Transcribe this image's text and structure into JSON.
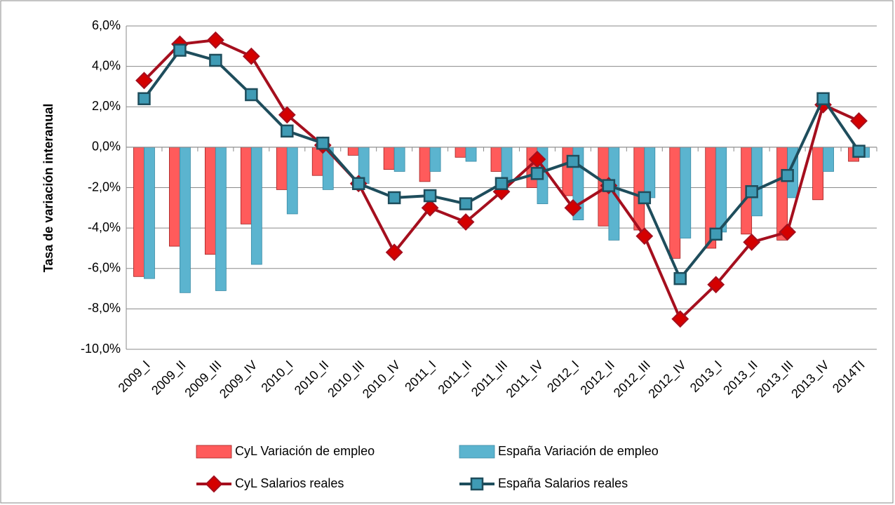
{
  "chart_data": {
    "type": "bar",
    "y_label": "Tasa de variación interanual",
    "categories": [
      "2009_I",
      "2009_II",
      "2009_III",
      "2009_IV",
      "2010_I",
      "2010_II",
      "2010_III",
      "2010_IV",
      "2011_I",
      "2011_II",
      "2011_III",
      "2011_IV",
      "2012_I",
      "2012_II",
      "2012_III",
      "2012_IV",
      "2013_I",
      "2013_II",
      "2013_III",
      "2013_IV",
      "2014TI"
    ],
    "series": [
      {
        "name": "CyL Variación de empleo",
        "type": "bar",
        "color": "#ff5b5b",
        "values": [
          -6.4,
          -4.9,
          -5.3,
          -3.8,
          -2.1,
          -1.4,
          -0.4,
          -1.1,
          -1.7,
          -0.5,
          -1.2,
          -2.0,
          -2.4,
          -3.9,
          -4.1,
          -5.5,
          -5.0,
          -4.3,
          -4.6,
          -2.6,
          -0.7
        ]
      },
      {
        "name": "España Variación de empleo",
        "type": "bar",
        "color": "#5bb4cf",
        "values": [
          -6.5,
          -7.2,
          -7.1,
          -5.8,
          -3.3,
          -2.1,
          -1.8,
          -1.2,
          -1.2,
          -0.7,
          -1.8,
          -2.8,
          -3.6,
          -4.6,
          -2.5,
          -4.5,
          -4.2,
          -3.4,
          -2.5,
          -1.2,
          -0.5
        ]
      },
      {
        "name": "CyL Salarios reales",
        "type": "line",
        "color": "#a50f1e",
        "marker_color": "#d40000",
        "values": [
          3.3,
          5.1,
          5.3,
          4.5,
          1.6,
          0.1,
          -1.8,
          -5.2,
          -3.0,
          -3.7,
          -2.2,
          -0.6,
          -3.0,
          -1.9,
          -4.4,
          -8.5,
          -6.8,
          -4.7,
          -4.2,
          2.1,
          1.3
        ]
      },
      {
        "name": "España Salarios reales",
        "type": "line",
        "color": "#1e4d5c",
        "marker_color": "#3f9bb5",
        "values": [
          2.4,
          4.8,
          4.3,
          2.6,
          0.8,
          0.2,
          -1.8,
          -2.5,
          -2.4,
          -2.8,
          -1.8,
          -1.3,
          -0.7,
          -1.9,
          -2.5,
          -6.5,
          -4.3,
          -2.2,
          -1.4,
          2.4,
          -0.2
        ]
      }
    ],
    "ylim": [
      -10,
      6
    ],
    "yticks": [
      {
        "value": -10,
        "label": "-10,0%"
      },
      {
        "value": -8,
        "label": "-8,0%"
      },
      {
        "value": -6,
        "label": "-6,0%"
      },
      {
        "value": -4,
        "label": "-4,0%"
      },
      {
        "value": -2,
        "label": "-2,0%"
      },
      {
        "value": 0,
        "label": "0,0%"
      },
      {
        "value": 2,
        "label": "2,0%"
      },
      {
        "value": 4,
        "label": "4,0%"
      },
      {
        "value": 6,
        "label": "6,0%"
      }
    ],
    "grid": true
  }
}
